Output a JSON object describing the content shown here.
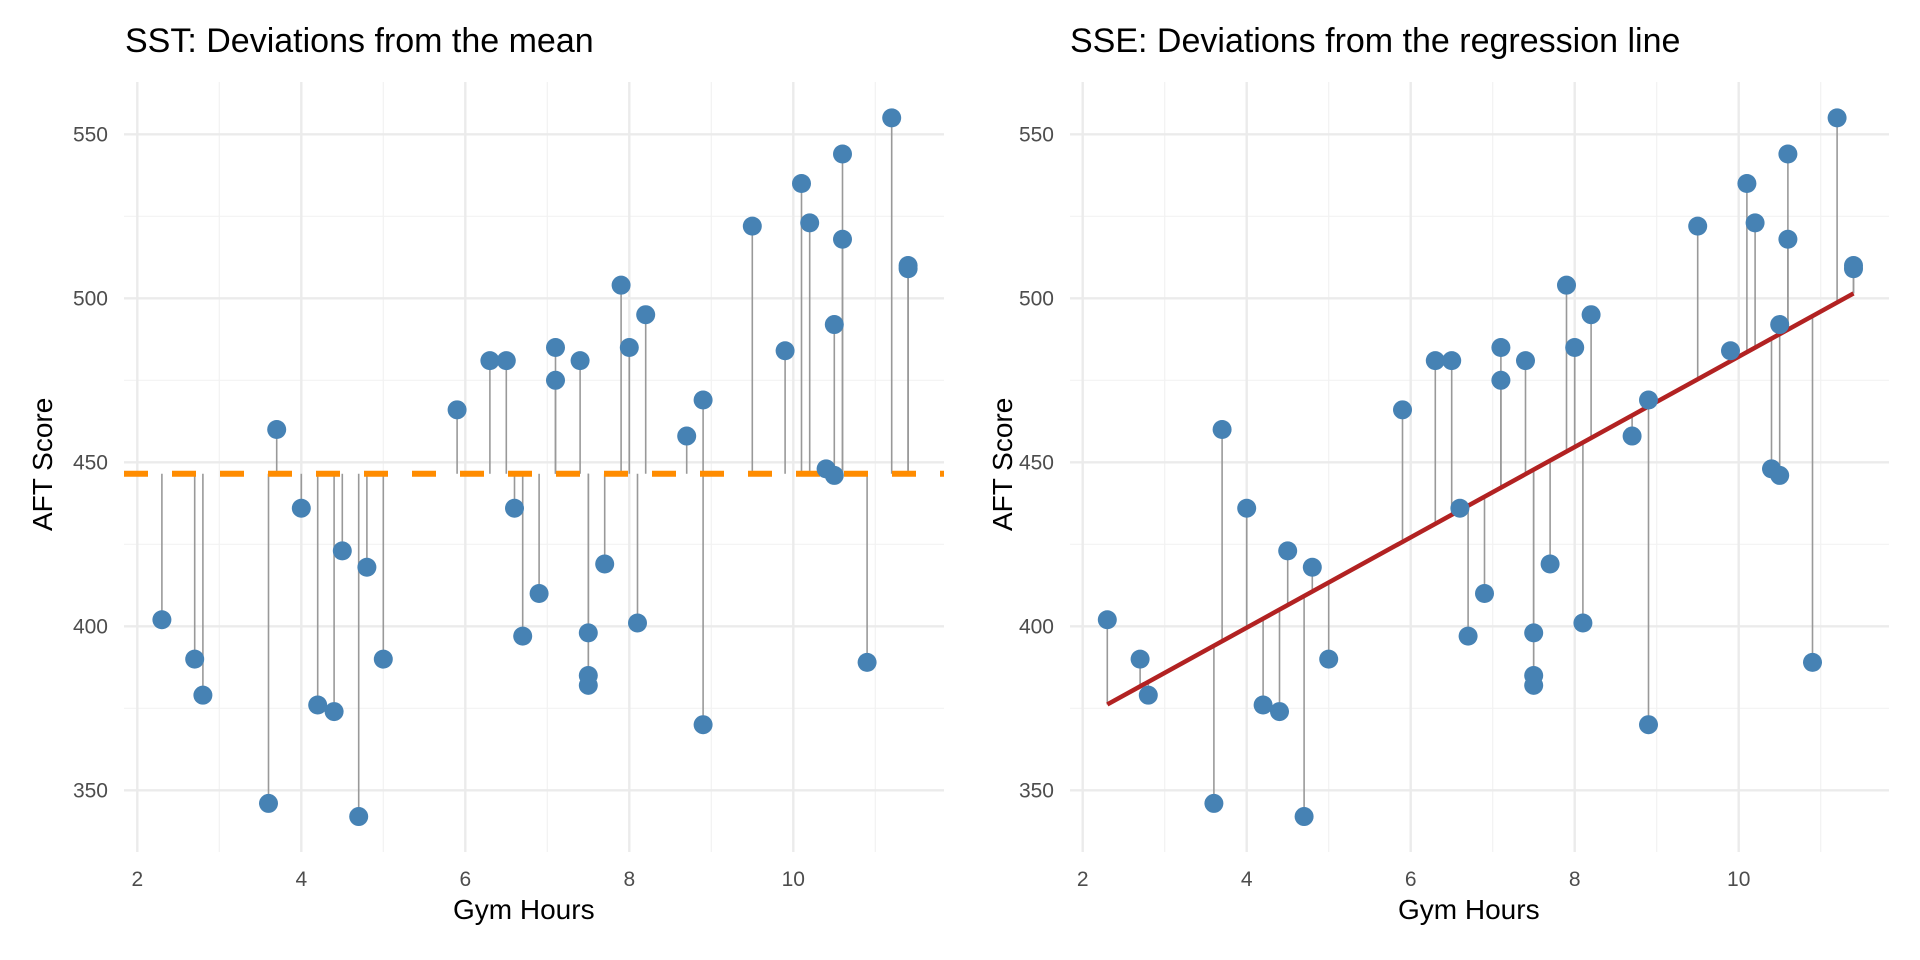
{
  "chart_data": [
    {
      "type": "scatter",
      "title": "SST: Deviations from the mean",
      "xlabel": "Gym Hours",
      "ylabel": "AFT Score",
      "xlim": [
        1.8,
        11.8
      ],
      "ylim": [
        331,
        566
      ],
      "x_ticks": [
        2,
        4,
        6,
        8,
        10
      ],
      "y_ticks": [
        350,
        400,
        450,
        500,
        550
      ],
      "grid": true,
      "reference_line": {
        "type": "horizontal-dashed",
        "label": "mean",
        "y": 446.5,
        "color": "#FF8C00"
      },
      "segments_to": "mean",
      "point_color": "#4682B4",
      "points": [
        {
          "x": 2.3,
          "y": 402
        },
        {
          "x": 2.7,
          "y": 390
        },
        {
          "x": 2.8,
          "y": 379
        },
        {
          "x": 3.6,
          "y": 346
        },
        {
          "x": 3.7,
          "y": 460
        },
        {
          "x": 4.0,
          "y": 436
        },
        {
          "x": 4.2,
          "y": 376
        },
        {
          "x": 4.4,
          "y": 374
        },
        {
          "x": 4.5,
          "y": 423
        },
        {
          "x": 4.7,
          "y": 342
        },
        {
          "x": 4.8,
          "y": 418
        },
        {
          "x": 5.0,
          "y": 390
        },
        {
          "x": 5.9,
          "y": 466
        },
        {
          "x": 6.3,
          "y": 481
        },
        {
          "x": 6.5,
          "y": 481
        },
        {
          "x": 6.6,
          "y": 436
        },
        {
          "x": 6.7,
          "y": 397
        },
        {
          "x": 6.9,
          "y": 410
        },
        {
          "x": 7.1,
          "y": 485
        },
        {
          "x": 7.1,
          "y": 475
        },
        {
          "x": 7.4,
          "y": 481
        },
        {
          "x": 7.5,
          "y": 398
        },
        {
          "x": 7.5,
          "y": 385
        },
        {
          "x": 7.5,
          "y": 382
        },
        {
          "x": 7.7,
          "y": 419
        },
        {
          "x": 7.9,
          "y": 504
        },
        {
          "x": 8.0,
          "y": 485
        },
        {
          "x": 8.1,
          "y": 401
        },
        {
          "x": 8.2,
          "y": 495
        },
        {
          "x": 8.7,
          "y": 458
        },
        {
          "x": 8.9,
          "y": 469
        },
        {
          "x": 8.9,
          "y": 370
        },
        {
          "x": 9.5,
          "y": 522
        },
        {
          "x": 9.9,
          "y": 484
        },
        {
          "x": 10.1,
          "y": 535
        },
        {
          "x": 10.2,
          "y": 523
        },
        {
          "x": 10.4,
          "y": 448
        },
        {
          "x": 10.5,
          "y": 446
        },
        {
          "x": 10.5,
          "y": 492
        },
        {
          "x": 10.6,
          "y": 544
        },
        {
          "x": 10.6,
          "y": 518
        },
        {
          "x": 10.9,
          "y": 389
        },
        {
          "x": 11.2,
          "y": 555
        },
        {
          "x": 11.4,
          "y": 509
        },
        {
          "x": 11.4,
          "y": 510
        }
      ]
    },
    {
      "type": "scatter",
      "title": "SSE: Deviations from the regression line",
      "xlabel": "Gym Hours",
      "ylabel": "AFT Score",
      "xlim": [
        1.8,
        11.8
      ],
      "ylim": [
        331,
        566
      ],
      "x_ticks": [
        2,
        4,
        6,
        8,
        10
      ],
      "y_ticks": [
        350,
        400,
        450,
        500,
        550
      ],
      "grid": true,
      "reference_line": {
        "type": "regression",
        "label": "regression line",
        "intercept": 344.5,
        "slope": 13.77,
        "x_range": [
          2.3,
          11.4
        ],
        "color": "#B22222"
      },
      "segments_to": "regression",
      "point_color": "#4682B4",
      "points": "same as SST panel"
    }
  ]
}
